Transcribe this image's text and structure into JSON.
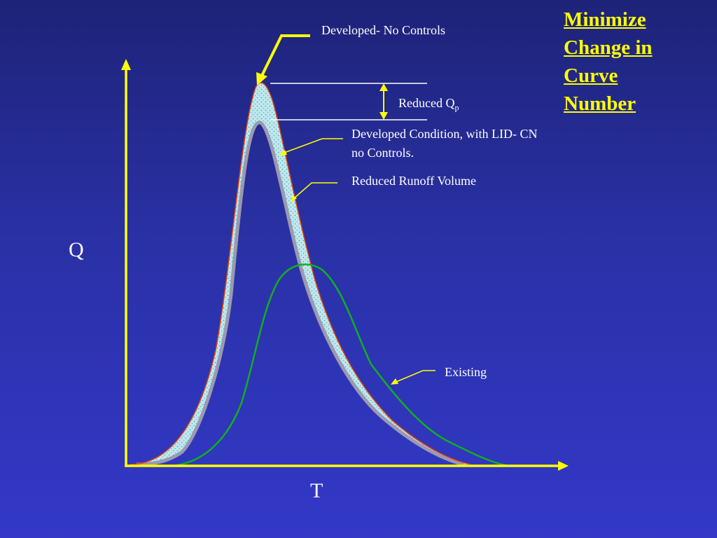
{
  "title_lines": [
    "Minimize",
    "Change in",
    "Curve",
    "Number"
  ],
  "axis_labels": {
    "y": "Q",
    "x": "T"
  },
  "annotations": {
    "developed_no_controls": "Developed- No Controls",
    "reduced_qp_main": "Reduced Q",
    "reduced_qp_sub": "p",
    "lid_line1": "Developed Condition, with LID- CN",
    "lid_line2": "no Controls.",
    "reduced_runoff": "Reduced Runoff Volume",
    "existing": "Existing"
  },
  "colors": {
    "axis": "#ffff00",
    "existing_curve": "#10b020",
    "developed_curve": "#e04010",
    "band_fill": "#bfe8ee",
    "lid_curve": "#9a9ab0"
  }
}
